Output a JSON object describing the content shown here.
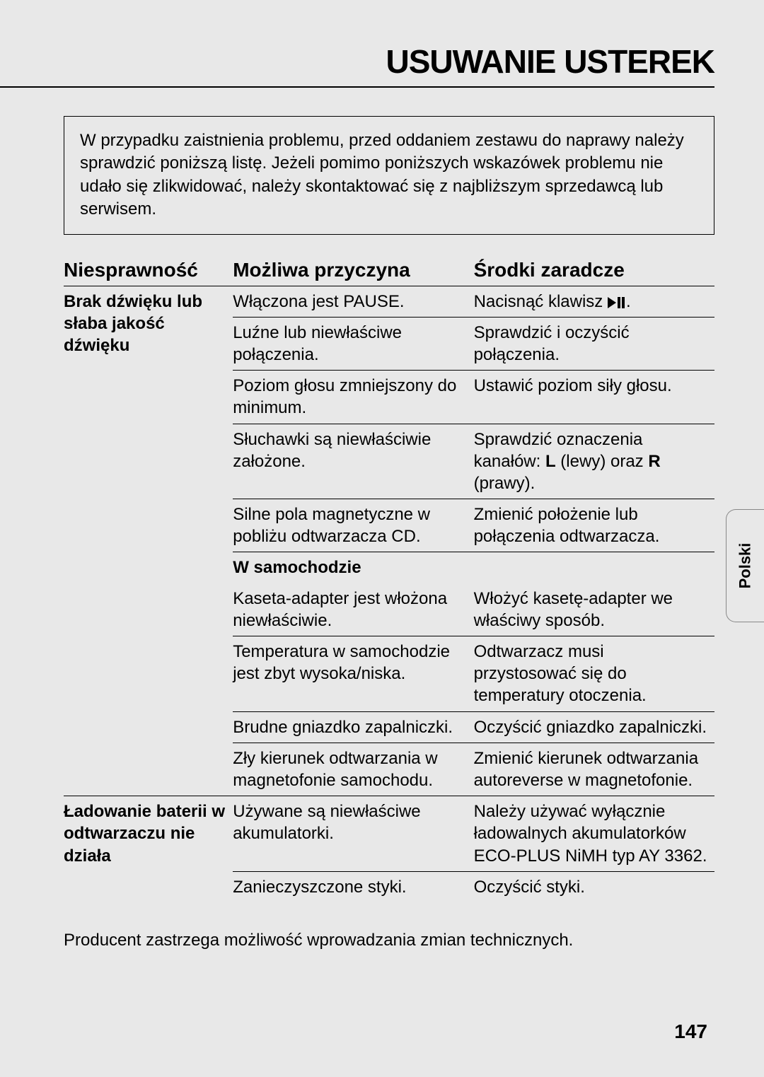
{
  "title": "USUWANIE USTEREK",
  "intro": "W przypadku zaistnienia problemu, przed oddaniem zestawu do naprawy należy sprawdzić poniższą listę. Jeżeli pomimo poniższych wskazówek problemu nie udało się zlikwidować, należy skontaktować się z najbliższym sprzedawcą lub serwisem.",
  "headers": {
    "problem": "Niesprawność",
    "cause": "Możliwa przyczyna",
    "remedy": "Środki zaradcze"
  },
  "groups": [
    {
      "problem": "Brak dźwięku lub słaba jakość dźwięku",
      "rows": [
        {
          "cause": "Włączona jest PAUSE.",
          "remedy_prefix": "Nacisnąć klawisz ",
          "remedy_suffix": ".",
          "icon": "play-pause"
        },
        {
          "cause": "Luźne lub niewłaściwe połączenia.",
          "remedy": "Sprawdzić i oczyścić połączenia."
        },
        {
          "cause": "Poziom głosu zmniejszony do minimum.",
          "remedy": "Ustawić poziom siły głosu."
        },
        {
          "cause": "Słuchawki są niewłaściwie założone.",
          "remedy_html": "Sprawdzić oznaczenia kanałów: <b>L</b> (lewy) oraz <b>R</b> (prawy)."
        },
        {
          "cause": "Silne pola magnetyczne w pobliżu odtwarzacza CD.",
          "remedy": "Zmienić położenie lub połączenia odtwarzacza."
        },
        {
          "section": "W samochodzie",
          "cause": "Kaseta-adapter jest włożona niewłaściwie.",
          "remedy": "Włożyć kasetę-adapter we właściwy sposób."
        },
        {
          "cause": "Temperatura w samochodzie jest zbyt wysoka/niska.",
          "remedy": "Odtwarzacz musi przystosować się do temperatury otoczenia."
        },
        {
          "cause": "Brudne gniazdko zapalniczki.",
          "remedy": "Oczyścić gniazdko zapalniczki."
        },
        {
          "cause": "Zły kierunek odtwarzania w magnetofonie samochodu.",
          "remedy": "Zmienić kierunek odtwarzania autoreverse w magnetofonie."
        }
      ]
    },
    {
      "problem": "Ładowanie baterii w odtwarzaczu nie działa",
      "rows": [
        {
          "cause": "Używane są niewłaściwe akumulatorki.",
          "remedy": "Należy używać wyłącznie ładowalnych akumulatorków ECO-PLUS NiMH typ AY 3362."
        },
        {
          "cause": "Zanieczyszczone styki.",
          "remedy": "Oczyścić styki."
        }
      ]
    }
  ],
  "footer": "Producent zastrzega możliwość wprowadzania zmian technicznych.",
  "tab": "Polski",
  "page_num": "147",
  "colors": {
    "bg": "#e8e8e8",
    "text": "#000000",
    "tab_border": "#888888"
  }
}
